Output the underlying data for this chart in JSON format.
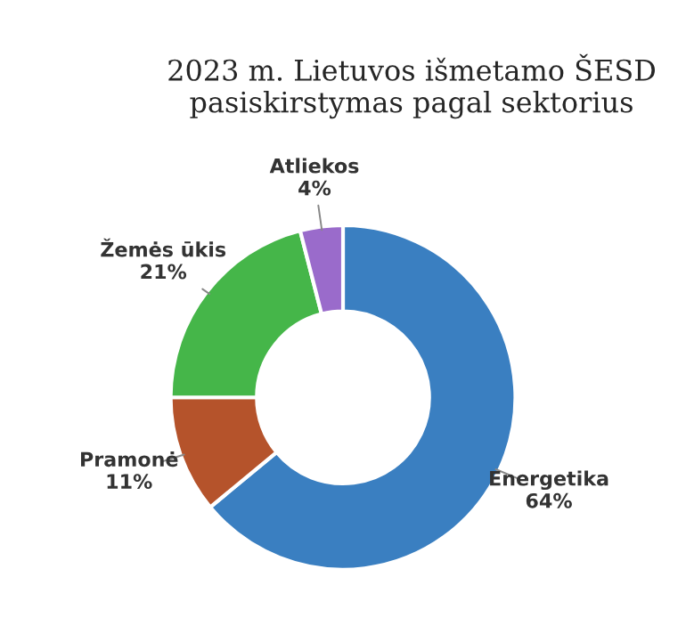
{
  "chart_data": {
    "type": "donut",
    "title": "2023 m. Lietuvos išmetamo ŠESD\npasiskirstymas pagal sektorius",
    "categories": [
      "Energetika",
      "Pramonė",
      "Žemės ūkis",
      "Atliekos"
    ],
    "values": [
      64,
      11,
      21,
      4
    ],
    "value_labels": [
      "64%",
      "11%",
      "21%",
      "4%"
    ],
    "colors": [
      "#3a7fc1",
      "#b5532b",
      "#45b649",
      "#9a6bcb"
    ],
    "legend": false
  }
}
